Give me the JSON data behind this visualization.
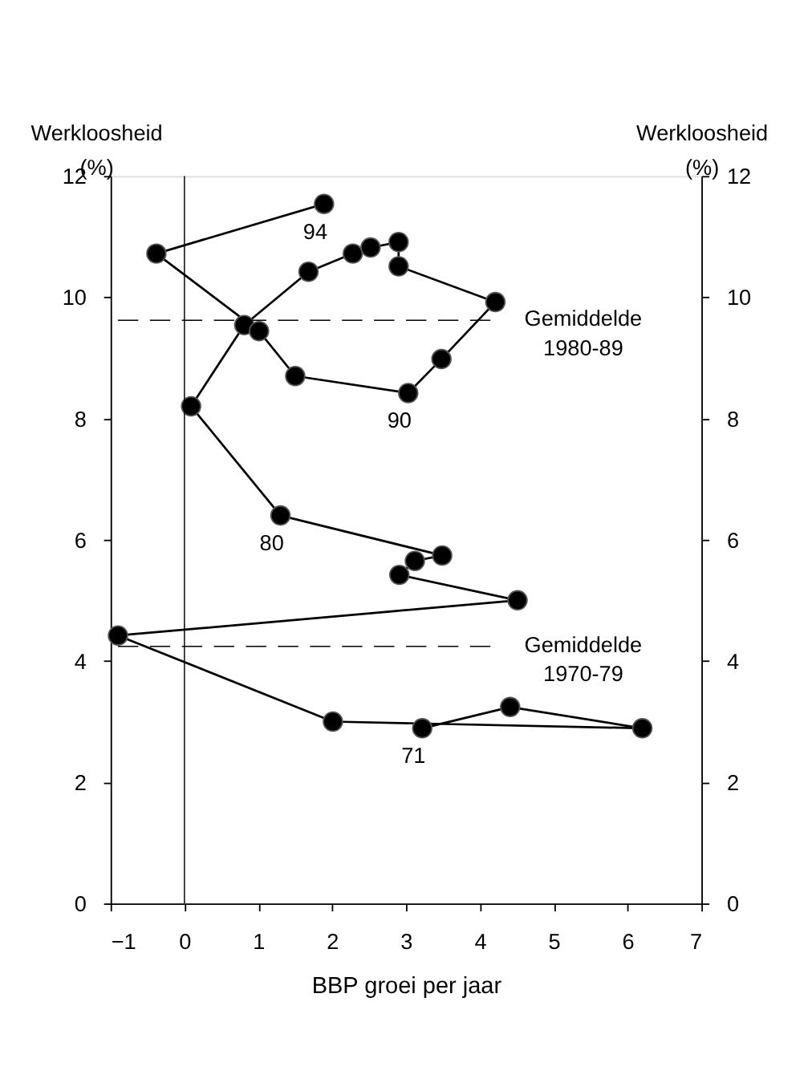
{
  "chart_data": {
    "type": "line",
    "xlabel": "BBP groei per jaar",
    "ylabel": "Werkloosheid (%)",
    "y2label": "Werkloosheid (%)",
    "x": [
      3.22,
      4.41,
      6.2,
      2.01,
      -0.9,
      4.51,
      2.91,
      3.12,
      3.49,
      1.3,
      0.09,
      0.81,
      1.68,
      2.28,
      2.52,
      2.9,
      2.9,
      4.21,
      3.48,
      3.03,
      1.5,
      1.01,
      -0.38,
      1.89
    ],
    "series": [
      {
        "color": "#000000",
        "values": [
          2.89,
          3.24,
          2.89,
          3.0,
          4.42,
          5.0,
          5.42,
          5.65,
          5.74,
          6.4,
          8.2,
          9.54,
          10.42,
          10.72,
          10.82,
          10.91,
          10.51,
          9.92,
          8.98,
          8.42,
          8.7,
          9.44,
          10.72,
          11.54
        ]
      }
    ],
    "marker": "circle",
    "line_style": "solid",
    "grid": false,
    "xlim": [
      -1,
      7
    ],
    "xticks": [
      -1,
      0,
      1,
      2,
      3,
      4,
      5,
      6,
      7
    ],
    "ylim": [
      0,
      12
    ],
    "yticks": [
      0,
      2,
      4,
      6,
      8,
      10,
      12
    ],
    "y2lim": [
      0,
      12
    ],
    "y2ticks": [
      0,
      2,
      4,
      6,
      8,
      10,
      12
    ],
    "ref_lines": [
      {
        "axis": "x",
        "value": 0,
        "line_style": "solid"
      },
      {
        "axis": "y",
        "value": 9.62,
        "label": "Gemiddelde 1980-89",
        "line_style": "dashed"
      },
      {
        "axis": "y",
        "value": 4.24,
        "label": "Gemiddelde 1970-79",
        "line_style": "dashed"
      }
    ],
    "annotations": [
      {
        "text": "71",
        "x": 3.22,
        "y": 2.89
      },
      {
        "text": "80",
        "x": 1.3,
        "y": 6.4
      },
      {
        "text": "90",
        "x": 3.03,
        "y": 8.42
      },
      {
        "text": "94",
        "x": 1.89,
        "y": 11.54
      }
    ]
  }
}
